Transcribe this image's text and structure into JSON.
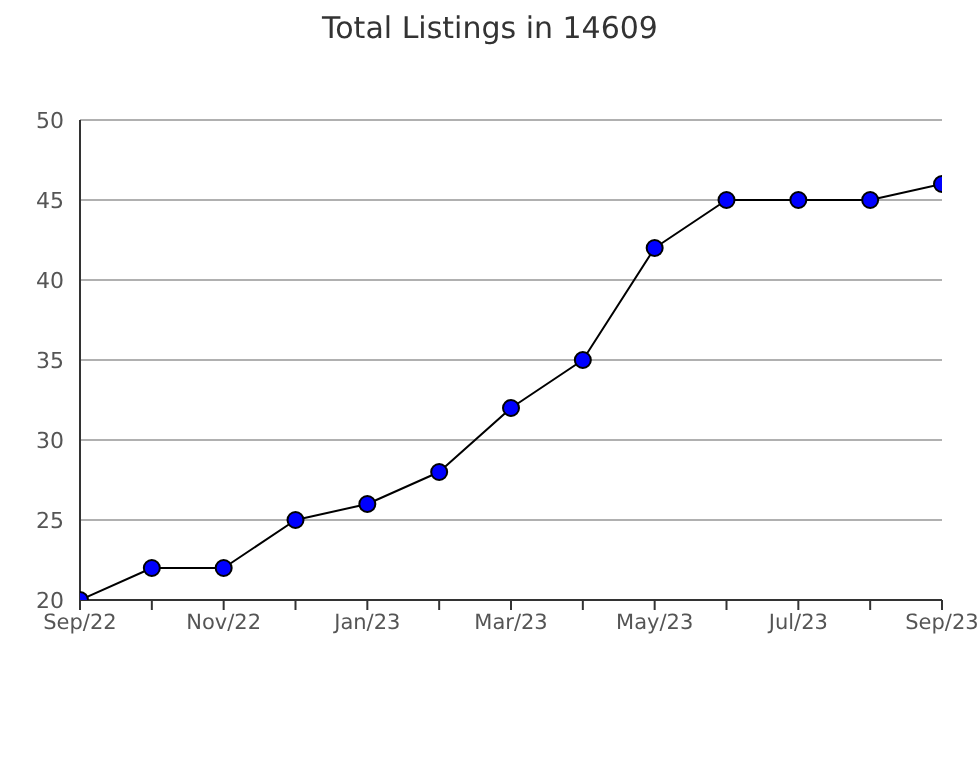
{
  "chart_data": {
    "type": "line",
    "title": "Total Listings in 14609",
    "categories": [
      "Sep/22",
      null,
      "Nov/22",
      null,
      "Jan/23",
      null,
      "Mar/23",
      null,
      "May/23",
      null,
      "Jul/23",
      null,
      "Sep/23"
    ],
    "series": [
      {
        "color": "#0000ff",
        "values": [
          20,
          22,
          22,
          25,
          26,
          28,
          32,
          35,
          42,
          45,
          45,
          45,
          46
        ]
      }
    ],
    "ylim": [
      20,
      50
    ],
    "yticks": [
      20,
      25,
      30,
      35,
      40,
      45,
      50
    ],
    "grid": "y",
    "marker": "circle",
    "line_style": "solid",
    "legend": false
  }
}
